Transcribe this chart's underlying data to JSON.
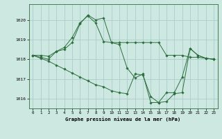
{
  "title": "Graphe pression niveau de la mer (hPa)",
  "bg_color": "#cce8e0",
  "grid_color": "#aacccc",
  "line_color": "#2d6e3e",
  "marker_color": "#2d6e3e",
  "ylim": [
    1015.5,
    1020.8
  ],
  "xlim": [
    -0.5,
    23.5
  ],
  "yticks": [
    1016,
    1017,
    1018,
    1019,
    1020
  ],
  "xticks": [
    0,
    1,
    2,
    3,
    4,
    5,
    6,
    7,
    8,
    9,
    10,
    11,
    12,
    13,
    14,
    15,
    16,
    17,
    18,
    19,
    20,
    21,
    22,
    23
  ],
  "series": [
    [
      1018.2,
      1018.2,
      1018.15,
      1018.4,
      1018.5,
      1018.85,
      1019.8,
      1020.25,
      1020.0,
      1020.1,
      1018.85,
      1018.85,
      1018.85,
      1018.85,
      1018.85,
      1018.85,
      1018.85,
      1018.2,
      1018.2,
      1018.2,
      1018.1,
      1018.1,
      1018.05,
      1018.0
    ],
    [
      1018.2,
      1018.1,
      1018.0,
      1018.4,
      1018.6,
      1019.1,
      1019.85,
      1020.2,
      1019.85,
      1018.9,
      1018.85,
      1018.75,
      1017.55,
      1017.05,
      1017.25,
      1015.8,
      1015.8,
      1016.3,
      1016.3,
      1017.1,
      1018.55,
      1018.2,
      1018.05,
      1018.0
    ],
    [
      1018.2,
      1018.05,
      1017.9,
      1017.7,
      1017.5,
      1017.3,
      1017.1,
      1016.9,
      1016.7,
      1016.6,
      1016.4,
      1016.3,
      1016.25,
      1017.25,
      1017.2,
      1016.1,
      1015.8,
      1015.85,
      1016.25,
      1016.3,
      1018.55,
      1018.2,
      1018.05,
      1018.0
    ]
  ]
}
